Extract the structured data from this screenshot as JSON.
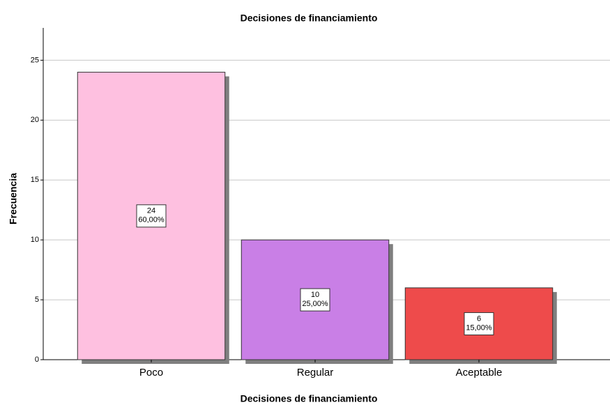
{
  "chart_data": {
    "type": "bar",
    "title": "Decisiones de financiamiento",
    "x_label": "Decisiones de financiamiento",
    "y_label": "Frecuencia",
    "categories": [
      "Poco",
      "Regular",
      "Aceptable"
    ],
    "values": [
      24,
      10,
      6
    ],
    "percent_labels": [
      "60,00%",
      "25,00%",
      "15,00%"
    ],
    "colors": [
      "#fec0e0",
      "#c97fe6",
      "#ee4b4b"
    ],
    "ylim": [
      0,
      27.7
    ],
    "yticks": [
      0,
      5,
      10,
      15,
      20,
      25
    ],
    "grid": true
  }
}
